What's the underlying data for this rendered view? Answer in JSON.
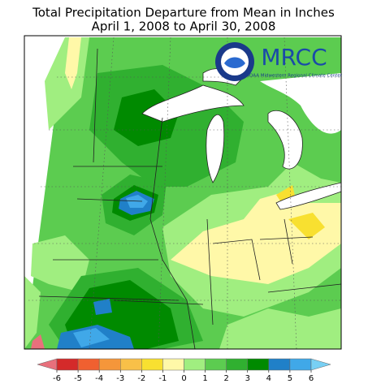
{
  "title_lines": [
    "Total Precipitation Departure from Mean in Inches",
    "April 1, 2008 to April 30, 2008"
  ],
  "logo": {
    "name": "MRCC",
    "subtitle": "NOAA Midwestern Regional Climate Center"
  },
  "colorbar": {
    "ticks": [
      -6,
      -5,
      -4,
      -3,
      -2,
      -1,
      0,
      1,
      2,
      3,
      4,
      5,
      6
    ],
    "colors": [
      "#e8707c",
      "#d42a2a",
      "#f06030",
      "#f5963a",
      "#f8c048",
      "#f8e030",
      "#fff8a8",
      "#a0ee80",
      "#5ccc50",
      "#30b030",
      "#008a00",
      "#2080c8",
      "#40a8e8",
      "#78d0f4"
    ]
  }
}
